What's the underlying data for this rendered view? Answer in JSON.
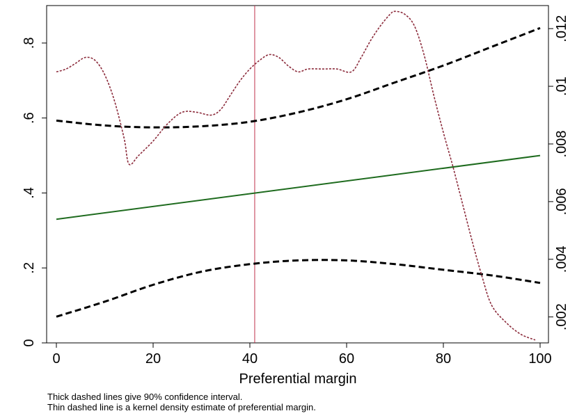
{
  "chart_data": {
    "type": "line",
    "title": "",
    "xlabel": "Preferential margin",
    "ylabel_left": "",
    "ylabel_right": "",
    "xlim": [
      0,
      100
    ],
    "ylim_left": [
      0,
      0.9
    ],
    "ylim_right": [
      0.0011,
      0.0128
    ],
    "grid": false,
    "legend": "none",
    "x_ticks": [
      {
        "value": 0,
        "label": "0"
      },
      {
        "value": 20,
        "label": "20"
      },
      {
        "value": 40,
        "label": "40"
      },
      {
        "value": 60,
        "label": "60"
      },
      {
        "value": 80,
        "label": "80"
      },
      {
        "value": 100,
        "label": "100"
      }
    ],
    "y_left_ticks": [
      {
        "value": 0,
        "label": "0"
      },
      {
        "value": 0.2,
        "label": ".2"
      },
      {
        "value": 0.4,
        "label": ".4"
      },
      {
        "value": 0.6,
        "label": ".6"
      },
      {
        "value": 0.8,
        "label": ".8"
      }
    ],
    "y_right_ticks": [
      {
        "value": 0.002,
        "label": ".002"
      },
      {
        "value": 0.004,
        "label": ".004"
      },
      {
        "value": 0.006,
        "label": ".006"
      },
      {
        "value": 0.008,
        "label": ".008"
      },
      {
        "value": 0.01,
        "label": ".01"
      },
      {
        "value": 0.012,
        "label": ".012"
      }
    ],
    "vline": {
      "x": 41,
      "color": "#c0304a"
    },
    "series": [
      {
        "axis": "left",
        "style": "solid",
        "color": "#1e6b1e",
        "x": [
          0,
          100
        ],
        "y": [
          0.33,
          0.5
        ]
      },
      {
        "axis": "left",
        "style": "thick-dashed",
        "color": "#000000",
        "x": [
          0,
          10,
          20,
          30,
          40,
          50,
          60,
          70,
          80,
          90,
          100
        ],
        "y": [
          0.593,
          0.58,
          0.575,
          0.578,
          0.59,
          0.615,
          0.65,
          0.695,
          0.74,
          0.79,
          0.84
        ]
      },
      {
        "axis": "left",
        "style": "thick-dashed",
        "color": "#000000",
        "x": [
          0,
          10,
          20,
          30,
          40,
          50,
          60,
          70,
          80,
          90,
          100
        ],
        "y": [
          0.07,
          0.11,
          0.155,
          0.19,
          0.21,
          0.22,
          0.22,
          0.21,
          0.195,
          0.18,
          0.16
        ]
      },
      {
        "axis": "right",
        "style": "thin-dashed",
        "color": "#8b2a3a",
        "x": [
          0,
          2,
          4,
          6,
          8,
          10,
          12,
          14,
          15,
          17,
          20,
          23,
          26,
          29,
          32,
          34,
          36,
          38,
          40,
          42,
          44,
          46,
          48,
          50,
          52,
          55,
          58,
          61,
          63,
          65,
          67,
          69,
          70,
          72,
          74,
          76,
          78,
          80,
          82,
          84,
          86,
          88,
          90,
          93,
          96,
          99
        ],
        "y": [
          0.0105,
          0.0106,
          0.0108,
          0.011,
          0.0109,
          0.0104,
          0.0095,
          0.0082,
          0.0073,
          0.0076,
          0.0081,
          0.0087,
          0.0091,
          0.0091,
          0.009,
          0.0092,
          0.0097,
          0.0102,
          0.0106,
          0.0109,
          0.0111,
          0.011,
          0.0107,
          0.0105,
          0.0106,
          0.0106,
          0.0106,
          0.0105,
          0.011,
          0.0116,
          0.0121,
          0.0125,
          0.0126,
          0.0125,
          0.0121,
          0.0111,
          0.0097,
          0.0084,
          0.0072,
          0.0059,
          0.0046,
          0.0034,
          0.0024,
          0.0018,
          0.0014,
          0.0012
        ]
      }
    ]
  },
  "notes": [
    "Thick dashed lines give 90% confidence interval.",
    "Thin dashed line is a kernel density estimate of preferential margin."
  ]
}
